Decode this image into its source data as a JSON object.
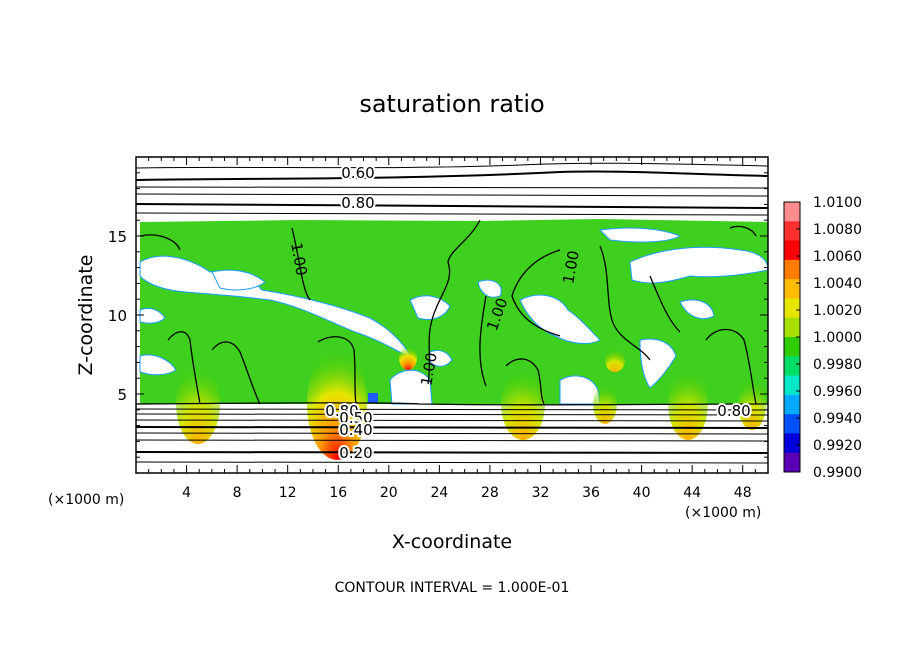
{
  "chart_data": {
    "type": "heatmap",
    "title": "saturation ratio",
    "xlabel": "X-coordinate",
    "ylabel": "Z-coordinate",
    "x_unit_left": "(×1000 m)",
    "x_unit_right": "(×1000 m)",
    "footer": "CONTOUR INTERVAL = 1.000E-01",
    "xlim": [
      0,
      50
    ],
    "ylim": [
      0,
      20
    ],
    "x_ticks": [
      4,
      8,
      12,
      16,
      20,
      24,
      28,
      32,
      36,
      40,
      44,
      48
    ],
    "y_ticks": [
      5,
      10,
      15
    ],
    "colorbar": {
      "range": [
        0.99,
        1.01
      ],
      "labels": [
        "1.0100",
        "1.0080",
        "1.0060",
        "1.0040",
        "1.0020",
        "1.0000",
        "0.9980",
        "0.9960",
        "0.9940",
        "0.9920",
        "0.9900"
      ],
      "colors": [
        "#ff8c8c",
        "#ff3030",
        "#ff0000",
        "#ff7a00",
        "#ffbb00",
        "#e6e600",
        "#a8e000",
        "#2ecc00",
        "#00dd66",
        "#00e6c8",
        "#00aaff",
        "#0050ff",
        "#0000dd",
        "#5a00b4"
      ]
    },
    "contour_labels": [
      {
        "text": "0.60",
        "x": 17.5,
        "z": 18.8
      },
      {
        "text": "0.80",
        "x": 17.5,
        "z": 17.1
      },
      {
        "text": "1.00",
        "x": 12.5,
        "z": 13.5
      },
      {
        "text": "1.00",
        "x": 34.5,
        "z": 13.5
      },
      {
        "text": "1.00",
        "x": 28.5,
        "z": 10.0
      },
      {
        "text": "1.00",
        "x": 23.2,
        "z": 6.0
      },
      {
        "text": "0.80",
        "x": 47.2,
        "z": 4.0
      },
      {
        "text": "0.80",
        "x": 16.3,
        "z": 4.0
      },
      {
        "text": "0.50",
        "x": 17.2,
        "z": 3.7
      },
      {
        "text": "0.40",
        "x": 17.3,
        "z": 2.7
      },
      {
        "text": "0.20",
        "x": 17.3,
        "z": 1.3
      }
    ]
  }
}
